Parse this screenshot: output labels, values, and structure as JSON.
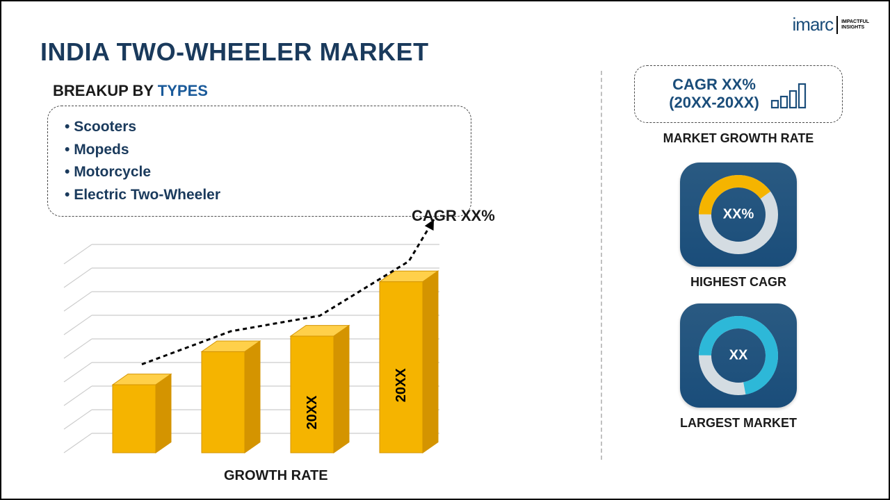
{
  "logo": {
    "brand": "imarc",
    "tagline1": "IMPACTFUL",
    "tagline2": "INSIGHTS"
  },
  "title": "INDIA TWO-WHEELER MARKET",
  "subtitle_prefix": "BREAKUP BY ",
  "subtitle_highlight": "TYPES",
  "types": [
    "Scooters",
    "Mopeds",
    "Motorcycle",
    "Electric Two-Wheeler"
  ],
  "cagr_label": "CAGR XX%",
  "growth_label": "GROWTH RATE",
  "barchart": {
    "type": "bar",
    "bar_color": "#f5b400",
    "bar_stroke": "#d49400",
    "grid_color": "#cccccc",
    "background": "#ffffff",
    "bars": [
      {
        "height_pct": 35,
        "label": ""
      },
      {
        "height_pct": 52,
        "label": ""
      },
      {
        "height_pct": 60,
        "label": "20XX"
      },
      {
        "height_pct": 88,
        "label": "20XX"
      }
    ],
    "trend_line": {
      "color": "#000000",
      "dash": "6,5",
      "width": 3,
      "arrow": true
    }
  },
  "right": {
    "cagr_line1": "CAGR XX%",
    "cagr_line2": "(20XX-20XX)",
    "growth_rate_label": "MARKET GROWTH RATE",
    "highest_cagr": {
      "label": "HIGHEST CAGR",
      "center": "XX%",
      "arc_color": "#f5b400",
      "track_color": "#d4dce2",
      "fill_pct": 40
    },
    "largest_market": {
      "label": "LARGEST MARKET",
      "center": "XX",
      "arc_color": "#2db8d8",
      "track_color": "#d4dce2",
      "fill_pct": 72
    },
    "mini_bars": {
      "color": "#1a4d7a",
      "heights": [
        10,
        16,
        24,
        34
      ]
    }
  }
}
